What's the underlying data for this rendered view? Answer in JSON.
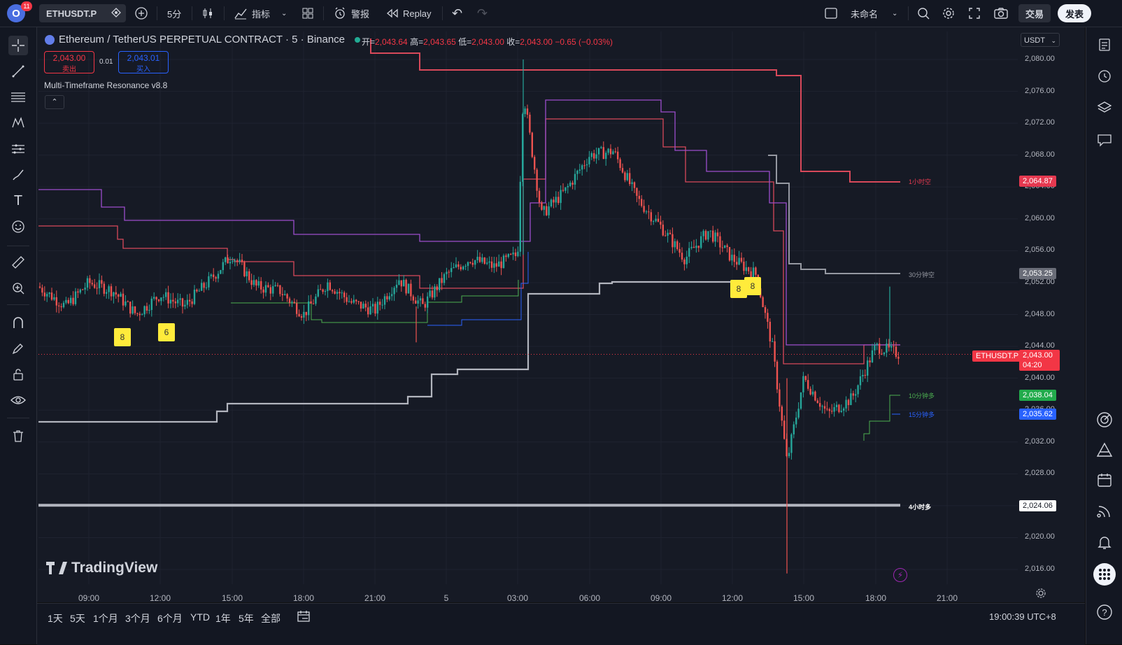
{
  "topbar": {
    "avatar_letter": "O",
    "notif_count": "11",
    "symbol": "ETHUSDT.P",
    "interval": "5分",
    "indicators": "指标",
    "alerts": "警报",
    "replay": "Replay",
    "layout_name": "未命名",
    "trade": "交易",
    "publish": "发表"
  },
  "chart": {
    "title": "Ethereum / TetherUS PERPETUAL CONTRACT · 5 · Binance",
    "ohlc": {
      "o_label": "开=",
      "o": "2,043.64",
      "h_label": "高=",
      "h": "2,043.65",
      "l_label": "低=",
      "l": "2,043.00",
      "c_label": "收=",
      "c": "2,043.00",
      "chg": "−0.65 (−0.03%)"
    },
    "sell_price": "2,043.00",
    "sell_label": "卖出",
    "spread": "0.01",
    "buy_price": "2,043.01",
    "buy_label": "买入",
    "indicator_name": "Multi-Timeframe Resonance v8.8",
    "currency": "USDT",
    "watermark": "TradingView",
    "markers": [
      "8",
      "6",
      "8",
      "8"
    ],
    "line_labels": {
      "h1_short": "1小时空",
      "m30_short": "30分钟空",
      "m10_long": "10分钟多",
      "m15_long": "15分钟多",
      "h4_long": "4小时多"
    },
    "price_tags": {
      "h1_short": "2,064.87",
      "m30_short": "2,053.25",
      "last_symbol": "ETHUSDT.P",
      "last": "2,043.00",
      "countdown": "04:20",
      "m10_long": "2,038.04",
      "m15_long": "2,035.62",
      "h4_long": "2,024.06"
    },
    "colors": {
      "up": "#26a69a",
      "down": "#ef5350",
      "h1": "#e53950",
      "m30": "#9598a1",
      "m10": "#4caf50",
      "m15": "#2962ff",
      "h4": "#b2b5be",
      "purple": "#9c4dcc",
      "marker": "#ffeb3b"
    }
  },
  "chart_data": {
    "type": "candlestick",
    "title": "Ethereum / TetherUS PERPETUAL CONTRACT · 5 · Binance",
    "y_ticks": [
      "2,080.00",
      "2,076.00",
      "2,072.00",
      "2,068.00",
      "2,064.00",
      "2,060.00",
      "2,056.00",
      "2,052.00",
      "2,048.00",
      "2,044.00",
      "2,040.00",
      "2,036.00",
      "2,032.00",
      "2,028.00",
      "2,024.00",
      "2,020.00",
      "2,016.00"
    ],
    "x_ticks": [
      "09:00",
      "12:00",
      "15:00",
      "18:00",
      "21:00",
      "5",
      "03:00",
      "06:00",
      "09:00",
      "12:00",
      "15:00",
      "18:00",
      "21:00"
    ],
    "ylim": [
      2014,
      2084
    ],
    "close_path": [
      {
        "t": "07:00",
        "p": 2051.5
      },
      {
        "t": "08:00",
        "p": 2049.0
      },
      {
        "t": "09:00",
        "p": 2052.0
      },
      {
        "t": "10:00",
        "p": 2051.0
      },
      {
        "t": "11:00",
        "p": 2048.0
      },
      {
        "t": "12:00",
        "p": 2050.5
      },
      {
        "t": "13:00",
        "p": 2049.0
      },
      {
        "t": "14:00",
        "p": 2052.0
      },
      {
        "t": "15:00",
        "p": 2055.5
      },
      {
        "t": "16:00",
        "p": 2051.5
      },
      {
        "t": "17:00",
        "p": 2051.0
      },
      {
        "t": "18:00",
        "p": 2048.0
      },
      {
        "t": "19:00",
        "p": 2052.0
      },
      {
        "t": "20:00",
        "p": 2049.5
      },
      {
        "t": "21:00",
        "p": 2048.5
      },
      {
        "t": "22:00",
        "p": 2052.5
      },
      {
        "t": "23:00",
        "p": 2049.0
      },
      {
        "t": "00:00",
        "p": 2053.0
      },
      {
        "t": "01:00",
        "p": 2055.0
      },
      {
        "t": "02:00",
        "p": 2054.0
      },
      {
        "t": "03:00",
        "p": 2055.5
      },
      {
        "t": "03:15",
        "p": 2076.0
      },
      {
        "t": "04:00",
        "p": 2060.5
      },
      {
        "t": "05:00",
        "p": 2063.5
      },
      {
        "t": "06:00",
        "p": 2068.0
      },
      {
        "t": "07:00",
        "p": 2068.5
      },
      {
        "t": "08:00",
        "p": 2062.5
      },
      {
        "t": "09:00",
        "p": 2059.0
      },
      {
        "t": "10:00",
        "p": 2055.0
      },
      {
        "t": "11:00",
        "p": 2058.5
      },
      {
        "t": "12:00",
        "p": 2055.0
      },
      {
        "t": "13:00",
        "p": 2053.0
      },
      {
        "t": "13:40",
        "p": 2044.0
      },
      {
        "t": "14:10",
        "p": 2029.5
      },
      {
        "t": "15:00",
        "p": 2040.0
      },
      {
        "t": "16:00",
        "p": 2035.5
      },
      {
        "t": "17:00",
        "p": 2037.5
      },
      {
        "t": "18:00",
        "p": 2044.0
      },
      {
        "t": "18:30",
        "p": 2043.0
      }
    ],
    "levels": [
      {
        "name": "1小时空",
        "value": 2064.87
      },
      {
        "name": "30分钟空",
        "value": 2053.25
      },
      {
        "name": "10分钟多",
        "value": 2038.04
      },
      {
        "name": "15分钟多",
        "value": 2035.62
      },
      {
        "name": "4小时多",
        "value": 2024.06
      }
    ],
    "last_price": 2043.0
  },
  "bottombar": {
    "ranges": [
      "1天",
      "5天",
      "1个月",
      "3个月",
      "6个月",
      "YTD",
      "1年",
      "5年",
      "全部"
    ],
    "clock": "19:00:39 UTC+8"
  }
}
